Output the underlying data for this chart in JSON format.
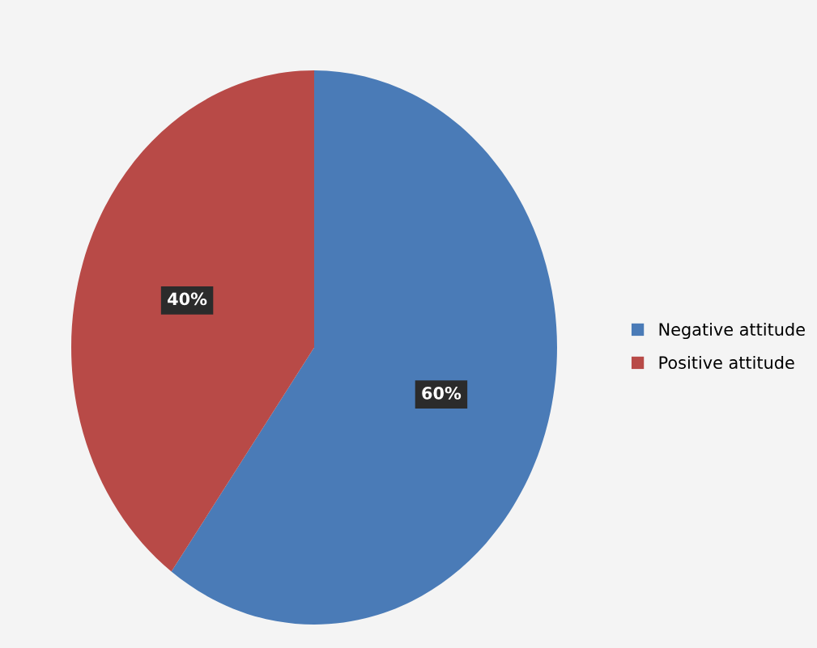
{
  "chart_data": {
    "type": "pie",
    "categories": [
      "Negative attitude",
      "Positive attitude"
    ],
    "values": [
      60,
      40
    ],
    "colors": [
      "#4a7bb7",
      "#b84a47"
    ],
    "value_labels": [
      "60%",
      "40%"
    ],
    "legend": "right"
  }
}
